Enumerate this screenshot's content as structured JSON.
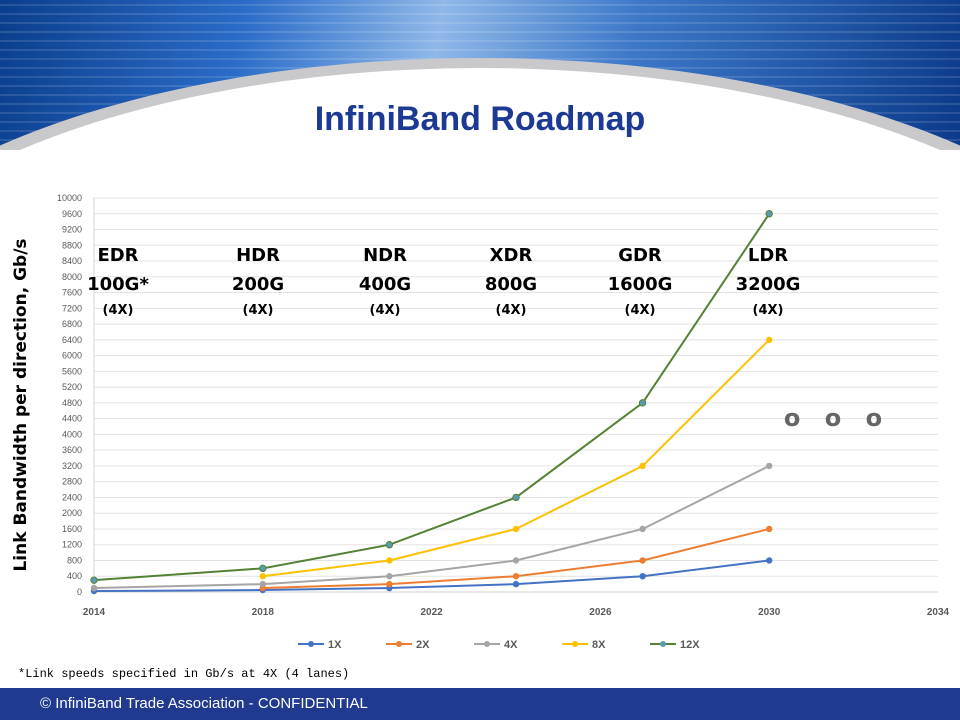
{
  "title": "InfiniBand Roadmap",
  "footnote": "*Link speeds specified in Gb/s at 4X (4 lanes)",
  "footer": "© InfiniBand Trade Association - CONFIDENTIAL",
  "ellipsis": "o o o",
  "generations": [
    {
      "name": "EDR",
      "speed": "100G*",
      "lanes": "(4X)",
      "year": 2014
    },
    {
      "name": "HDR",
      "speed": "200G",
      "lanes": "(4X)",
      "year": 2018
    },
    {
      "name": "NDR",
      "speed": "400G",
      "lanes": "(4X)",
      "year": 2021
    },
    {
      "name": "XDR",
      "speed": "800G",
      "lanes": "(4X)",
      "year": 2024
    },
    {
      "name": "GDR",
      "speed": "1600G",
      "lanes": "(4X)",
      "year": 2027
    },
    {
      "name": "LDR",
      "speed": "3200G",
      "lanes": "(4X)",
      "year": 2030
    }
  ],
  "chart_data": {
    "type": "line",
    "title": "",
    "xlabel": "",
    "ylabel": "Link Bandwidth per direction, Gb/s",
    "xlim": [
      2014,
      2034
    ],
    "ylim": [
      0,
      10000
    ],
    "xticks": [
      2014,
      2018,
      2022,
      2026,
      2030,
      2034
    ],
    "ytick_step": 400,
    "grid": true,
    "legend": "bottom",
    "series": [
      {
        "name": "1X",
        "color": "#4472c4",
        "x": [
          2014,
          2018,
          2021,
          2024,
          2027,
          2030
        ],
        "values": [
          25,
          50,
          100,
          200,
          400,
          800
        ]
      },
      {
        "name": "2X",
        "color": "#ed7d31",
        "x": [
          2018,
          2021,
          2024,
          2027,
          2030
        ],
        "values": [
          100,
          200,
          400,
          800,
          1600
        ]
      },
      {
        "name": "4X",
        "color": "#a5a5a5",
        "x": [
          2014,
          2018,
          2021,
          2024,
          2027,
          2030
        ],
        "values": [
          100,
          200,
          400,
          800,
          1600,
          3200
        ]
      },
      {
        "name": "8X",
        "color": "#ffc000",
        "x": [
          2018,
          2021,
          2024,
          2027,
          2030
        ],
        "values": [
          400,
          800,
          1600,
          3200,
          6400
        ]
      },
      {
        "name": "12X",
        "color": "#548235",
        "marker": "#5b9bb0",
        "x": [
          2014,
          2018,
          2021,
          2024,
          2027,
          2030
        ],
        "values": [
          300,
          600,
          1200,
          2400,
          4800,
          9600
        ]
      }
    ]
  }
}
